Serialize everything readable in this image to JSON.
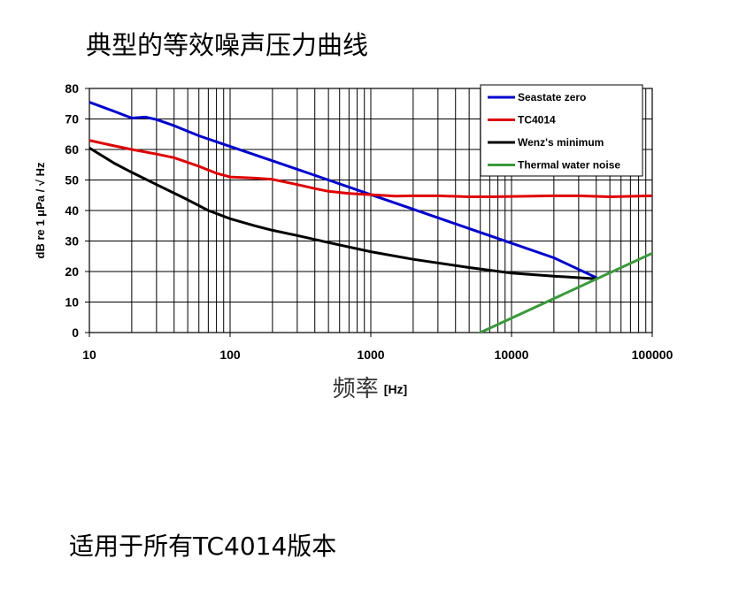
{
  "page": {
    "title": "典型的等效噪声压力曲线",
    "footer": "适用于所有TC4014版本"
  },
  "chart_data": {
    "type": "line",
    "xscale": "log",
    "xlim": [
      10,
      100000
    ],
    "ylim": [
      0,
      80
    ],
    "xticks": [
      "10",
      "100",
      "1000",
      "10000",
      "100000"
    ],
    "yticks": [
      "0",
      "10",
      "20",
      "30",
      "40",
      "50",
      "60",
      "70",
      "80"
    ],
    "ylabel": "dB re 1 μPa / √ Hz",
    "xlabel_main": "频率",
    "xlabel_unit": "[Hz]",
    "grid": true,
    "legend_position": "top-right",
    "series": [
      {
        "name": "Seastate zero",
        "color": "#0000d0",
        "x": [
          10,
          15,
          20,
          25,
          30,
          40,
          60,
          100,
          200,
          500,
          1000,
          2000,
          5000,
          10000,
          20000,
          40000
        ],
        "y": [
          75.5,
          72.5,
          70.3,
          70.6,
          69.8,
          67.8,
          64.5,
          61.0,
          56.3,
          50.0,
          45.2,
          40.4,
          34.1,
          29.3,
          24.5,
          18.0
        ]
      },
      {
        "name": "TC4014",
        "color": "#e00000",
        "x": [
          10,
          15,
          20,
          30,
          40,
          60,
          80,
          100,
          150,
          200,
          300,
          400,
          500,
          700,
          1000,
          1500,
          2000,
          3000,
          5000,
          7000,
          10000,
          20000,
          30000,
          50000,
          100000
        ],
        "y": [
          63,
          61.2,
          60,
          58.5,
          57.3,
          54.5,
          52.2,
          51.0,
          50.6,
          50.2,
          48.5,
          47.2,
          46.3,
          45.6,
          45.2,
          44.7,
          44.8,
          44.8,
          44.5,
          44.5,
          44.6,
          44.8,
          44.8,
          44.5,
          44.8
        ]
      },
      {
        "name": "Wenz's minimum",
        "color": "#000000",
        "x": [
          10,
          15,
          20,
          30,
          50,
          70,
          100,
          150,
          200,
          300,
          500,
          1000,
          2000,
          5000,
          10000,
          20000,
          40000
        ],
        "y": [
          60.5,
          55.5,
          52.5,
          48.5,
          43.5,
          40.0,
          37.3,
          35.0,
          33.5,
          31.8,
          29.5,
          26.5,
          24.0,
          21.3,
          19.5,
          18.5,
          17.6
        ]
      },
      {
        "name": "Thermal water noise",
        "color": "#3a9a3a",
        "x": [
          6000,
          100000
        ],
        "y": [
          0,
          26
        ]
      }
    ]
  }
}
